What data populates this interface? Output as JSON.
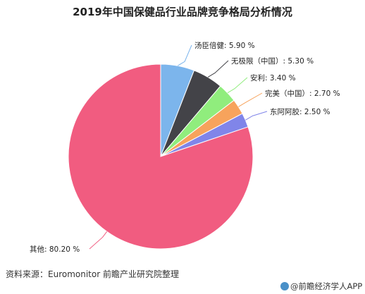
{
  "title": "2019年中国保健品行业品牌竞争格局分析情况",
  "source": "资料来源：Euromonitor 前瞻产业研究院整理",
  "brand": "@前瞻经济学人APP",
  "chart_data": {
    "type": "pie",
    "title": "2019年中国保健品行业品牌竞争格局分析情况",
    "unit": "%",
    "slices": [
      {
        "label": "汤臣倍健",
        "value": 5.9,
        "display": "汤臣倍健: 5.90 %",
        "color": "#7cb5ec"
      },
      {
        "label": "无极限（中国）",
        "value": 5.3,
        "display": "无极限（中国）: 5.30 %",
        "color": "#434348"
      },
      {
        "label": "安利",
        "value": 3.4,
        "display": "安利: 3.40 %",
        "color": "#90ed7d"
      },
      {
        "label": "完美（中国）",
        "value": 2.7,
        "display": "完美（中国）: 2.70 %",
        "color": "#f7a35c"
      },
      {
        "label": "东阿阿胶",
        "value": 2.5,
        "display": "东阿阿胶: 2.50 %",
        "color": "#8085e9"
      },
      {
        "label": "其他",
        "value": 80.2,
        "display": "其他: 80.20 %",
        "color": "#f15c80"
      }
    ]
  }
}
